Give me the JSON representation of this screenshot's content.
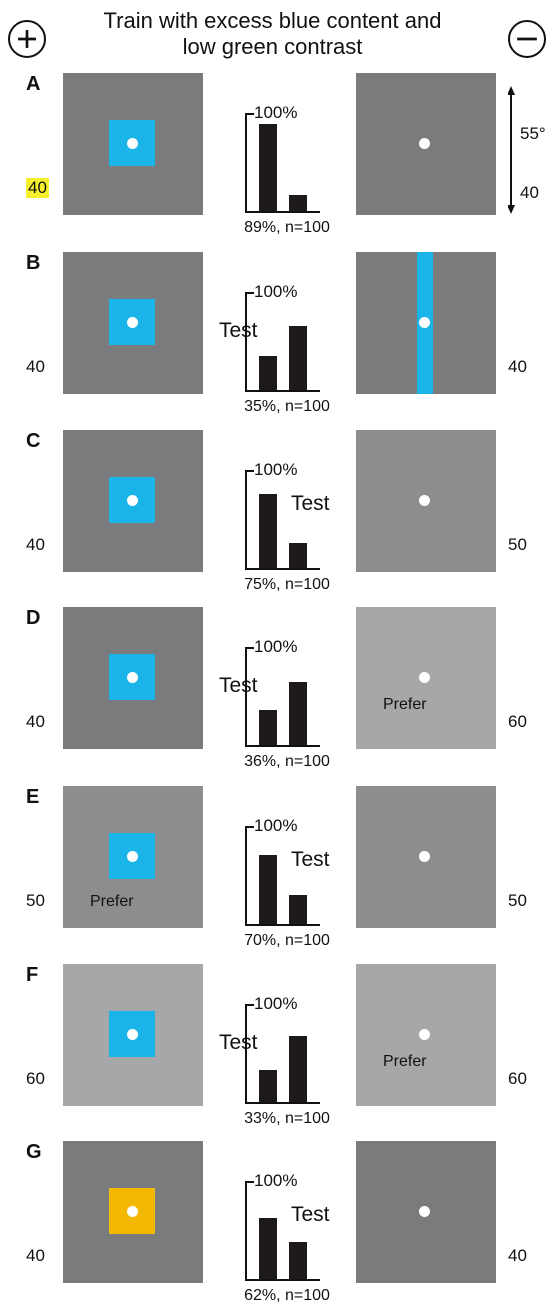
{
  "title": "Train with excess blue content and low green contrast",
  "plus_symbol": "+",
  "minus_symbol": "−",
  "scale": {
    "angle": "55°",
    "value": "40"
  },
  "colors": {
    "blue_patch": "#1ab4e8",
    "yellow_patch": "#f5b800",
    "bg_40": "#7a7b7d",
    "bg_50": "#8c8d8f",
    "bg_60": "#a6a7a9",
    "highlight": "#f6f02a"
  },
  "rows": [
    {
      "label": "A",
      "left_value": "40",
      "right_value": "",
      "left_bg": 40,
      "right_bg": 40,
      "patch": "blue-square",
      "right_stimulus": "dot",
      "chart": {
        "tick_label": "100%",
        "bar1": 0.89,
        "bar2": 0.16,
        "caption": "89%, n=100"
      },
      "test": "",
      "prefer_left": "",
      "prefer_right": ""
    },
    {
      "label": "B",
      "left_value": "40",
      "right_value": "40",
      "left_bg": 40,
      "right_bg": 40,
      "patch": "blue-square",
      "right_stimulus": "blue-stripe",
      "chart": {
        "tick_label": "100%",
        "bar1": 0.35,
        "bar2": 0.65,
        "caption": "35%, n=100"
      },
      "test": "Test",
      "test_side": "left",
      "prefer_left": "",
      "prefer_right": ""
    },
    {
      "label": "C",
      "left_value": "40",
      "right_value": "50",
      "left_bg": 40,
      "right_bg": 50,
      "patch": "blue-square",
      "right_stimulus": "dot",
      "chart": {
        "tick_label": "100%",
        "bar1": 0.75,
        "bar2": 0.25,
        "caption": "75%, n=100"
      },
      "test": "Test",
      "test_side": "right",
      "prefer_left": "",
      "prefer_right": ""
    },
    {
      "label": "D",
      "left_value": "40",
      "right_value": "60",
      "left_bg": 40,
      "right_bg": 60,
      "patch": "blue-square",
      "right_stimulus": "dot",
      "chart": {
        "tick_label": "100%",
        "bar1": 0.36,
        "bar2": 0.64,
        "caption": "36%, n=100"
      },
      "test": "Test",
      "test_side": "left",
      "prefer_left": "",
      "prefer_right": "Prefer"
    },
    {
      "label": "E",
      "left_value": "50",
      "right_value": "50",
      "left_bg": 50,
      "right_bg": 50,
      "patch": "blue-square",
      "right_stimulus": "dot",
      "chart": {
        "tick_label": "100%",
        "bar1": 0.7,
        "bar2": 0.3,
        "caption": "70%, n=100"
      },
      "test": "Test",
      "test_side": "right",
      "prefer_left": "Prefer",
      "prefer_right": ""
    },
    {
      "label": "F",
      "left_value": "60",
      "right_value": "60",
      "left_bg": 60,
      "right_bg": 60,
      "patch": "blue-square",
      "right_stimulus": "dot",
      "chart": {
        "tick_label": "100%",
        "bar1": 0.33,
        "bar2": 0.67,
        "caption": "33%, n=100"
      },
      "test": "Test",
      "test_side": "left",
      "prefer_left": "",
      "prefer_right": "Prefer"
    },
    {
      "label": "G",
      "left_value": "40",
      "right_value": "40",
      "left_bg": 40,
      "right_bg": 40,
      "patch": "yellow-square",
      "right_stimulus": "dot",
      "chart": {
        "tick_label": "100%",
        "bar1": 0.62,
        "bar2": 0.38,
        "caption": "62%, n=100"
      },
      "test": "Test",
      "test_side": "right",
      "prefer_left": "",
      "prefer_right": ""
    }
  ]
}
